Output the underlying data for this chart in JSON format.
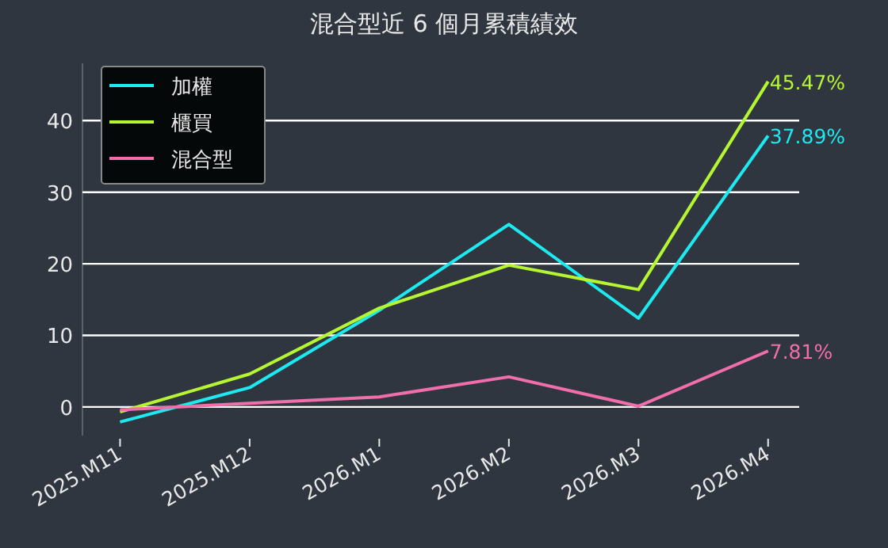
{
  "chart_data": {
    "type": "line",
    "title": "混合型近 6 個月累積績效",
    "categories": [
      "2025.M11",
      "2025.M12",
      "2026.M1",
      "2026.M2",
      "2026.M3",
      "2026.M4"
    ],
    "series": [
      {
        "name": "加權",
        "color": "#1de9f0",
        "values": [
          -2.1,
          2.7,
          13.5,
          25.5,
          12.4,
          37.89
        ],
        "value_labels": [
          null,
          null,
          null,
          null,
          null,
          "37.89%"
        ]
      },
      {
        "name": "櫃買",
        "color": "#b5f531",
        "values": [
          -0.7,
          4.6,
          13.8,
          19.8,
          16.4,
          45.47
        ],
        "value_labels": [
          null,
          null,
          null,
          null,
          null,
          "45.47%"
        ]
      },
      {
        "name": "混合型",
        "color": "#f06ea9",
        "values": [
          -0.4,
          0.5,
          1.4,
          4.2,
          0.1,
          7.81
        ],
        "value_labels": [
          null,
          null,
          null,
          null,
          null,
          "7.81%"
        ]
      }
    ],
    "ylim": [
      -4,
      48
    ],
    "yticks": [
      0,
      10,
      20,
      30,
      40
    ],
    "grid": "y",
    "legend": "top left"
  }
}
